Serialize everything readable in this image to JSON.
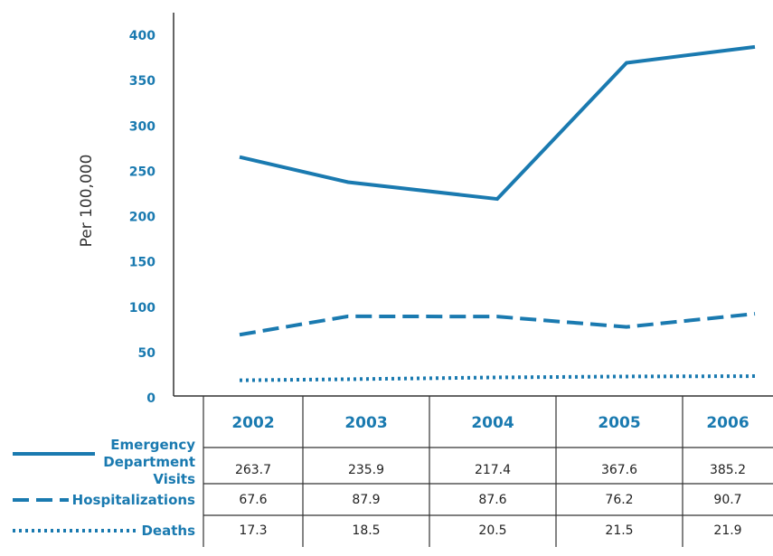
{
  "chart_data": {
    "type": "line",
    "y_label": "Per 100,000",
    "categories": [
      "2002",
      "2003",
      "2004",
      "2005",
      "2006"
    ],
    "ylim": [
      0,
      400
    ],
    "yticks": [
      0,
      50,
      100,
      150,
      200,
      250,
      300,
      350,
      400
    ],
    "series": [
      {
        "name": "Emergency Department Visits",
        "color": "#1a7ab0",
        "style": "solid",
        "values": [
          263.7,
          235.9,
          217.4,
          367.6,
          385.2
        ]
      },
      {
        "name": "Hospitalizations",
        "color": "#1a7ab0",
        "style": "dashed",
        "values": [
          67.6,
          87.9,
          87.6,
          76.2,
          90.7
        ]
      },
      {
        "name": "Deaths",
        "color": "#1a7ab0",
        "style": "dotted",
        "values": [
          17.3,
          18.5,
          20.5,
          21.5,
          21.9
        ]
      }
    ]
  }
}
